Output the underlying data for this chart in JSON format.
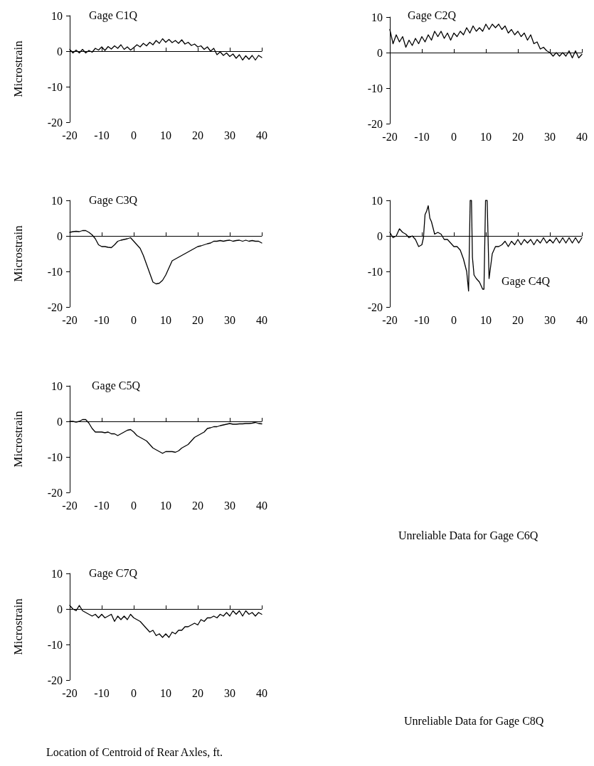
{
  "chart_data": [
    {
      "type": "line",
      "title": "Gage C1Q",
      "ylabel": "Microstrain",
      "color": "#000000",
      "xlim": [
        -20,
        40
      ],
      "ylim": [
        -20,
        10
      ],
      "xticks": [
        -20,
        -10,
        0,
        10,
        20,
        30,
        40
      ],
      "yticks": [
        -20,
        -10,
        0,
        10
      ],
      "x": [
        -20,
        -19,
        -18,
        -17,
        -16,
        -15,
        -14,
        -13,
        -12,
        -11,
        -10,
        -9,
        -8,
        -7,
        -6,
        -5,
        -4,
        -3,
        -2,
        -1,
        0,
        1,
        2,
        3,
        4,
        5,
        6,
        7,
        8,
        9,
        10,
        11,
        12,
        13,
        14,
        15,
        16,
        17,
        18,
        19,
        20,
        21,
        22,
        23,
        24,
        25,
        26,
        27,
        28,
        29,
        30,
        31,
        32,
        33,
        34,
        35,
        36,
        37,
        38,
        39,
        40
      ],
      "values": [
        0.5,
        -0.5,
        0.3,
        -0.5,
        0.5,
        -0.5,
        0.2,
        -0.3,
        0.8,
        0.3,
        1.2,
        0.2,
        1.3,
        0.6,
        1.5,
        0.8,
        1.8,
        0.5,
        1.2,
        0.3,
        1.0,
        1.8,
        1.2,
        2.2,
        1.5,
        2.5,
        1.8,
        3.0,
        2.2,
        3.5,
        2.5,
        3.3,
        2.4,
        3.0,
        2.2,
        3.2,
        2.0,
        2.5,
        1.6,
        2.0,
        1.2,
        1.5,
        0.5,
        1.2,
        0.0,
        0.8,
        -1.0,
        -0.2,
        -1.2,
        -0.5,
        -1.5,
        -0.8,
        -2.0,
        -1.0,
        -2.5,
        -1.3,
        -2.3,
        -1.2,
        -2.5,
        -1.2,
        -1.8
      ]
    },
    {
      "type": "line",
      "title": "Gage C2Q",
      "color": "#000000",
      "xlim": [
        -20,
        40
      ],
      "ylim": [
        -20,
        10
      ],
      "xticks": [
        -20,
        -10,
        0,
        10,
        20,
        30,
        40
      ],
      "yticks": [
        -20,
        -10,
        0,
        10
      ],
      "x": [
        -20,
        -19,
        -18,
        -17,
        -16,
        -15,
        -14,
        -13,
        -12,
        -11,
        -10,
        -9,
        -8,
        -7,
        -6,
        -5,
        -4,
        -3,
        -2,
        -1,
        0,
        1,
        2,
        3,
        4,
        5,
        6,
        7,
        8,
        9,
        10,
        11,
        12,
        13,
        14,
        15,
        16,
        17,
        18,
        19,
        20,
        21,
        22,
        23,
        24,
        25,
        26,
        27,
        28,
        29,
        30,
        31,
        32,
        33,
        34,
        35,
        36,
        37,
        38,
        39,
        40
      ],
      "values": [
        6.5,
        2.5,
        5,
        3,
        4.5,
        1.5,
        3.5,
        2,
        4,
        2.5,
        4.5,
        3,
        5,
        3.5,
        6,
        4.5,
        6,
        4,
        5.5,
        3.5,
        5.5,
        4.5,
        6,
        5,
        7,
        5.5,
        7.5,
        6,
        7,
        6,
        8,
        6.5,
        8,
        7,
        8,
        6.5,
        7.5,
        5.5,
        6.5,
        5,
        6,
        4.5,
        5.5,
        3.5,
        5,
        2.5,
        3,
        1,
        1.5,
        0.5,
        0,
        -1,
        0,
        -1,
        0,
        -1,
        0.5,
        -1.5,
        0.5,
        -1.5,
        -0.5
      ]
    },
    {
      "type": "line",
      "title": "Gage C3Q",
      "ylabel": "Microstrain",
      "color": "#000000",
      "xlim": [
        -20,
        40
      ],
      "ylim": [
        -20,
        10
      ],
      "xticks": [
        -20,
        -10,
        0,
        10,
        20,
        30,
        40
      ],
      "yticks": [
        -20,
        -10,
        0,
        10
      ],
      "x": [
        -20,
        -19,
        -18,
        -17,
        -16,
        -15,
        -14,
        -13,
        -12,
        -11,
        -10,
        -9,
        -8,
        -7,
        -6,
        -5,
        -4,
        -3,
        -2,
        -1,
        0,
        1,
        2,
        3,
        4,
        5,
        6,
        7,
        8,
        9,
        10,
        11,
        12,
        13,
        14,
        15,
        16,
        17,
        18,
        19,
        20,
        21,
        22,
        23,
        24,
        25,
        26,
        27,
        28,
        29,
        30,
        31,
        32,
        33,
        34,
        35,
        36,
        37,
        38,
        39,
        40
      ],
      "values": [
        1,
        1.2,
        1.3,
        1.2,
        1.5,
        1.5,
        1.0,
        0.3,
        -0.8,
        -2.5,
        -3,
        -3,
        -3.2,
        -3.3,
        -2.5,
        -1.5,
        -1.2,
        -1,
        -0.8,
        -0.5,
        -1.5,
        -2.5,
        -3.5,
        -5.5,
        -8,
        -10.5,
        -13,
        -13.5,
        -13.3,
        -12.5,
        -11,
        -9,
        -7,
        -6.5,
        -6,
        -5.5,
        -5,
        -4.5,
        -4,
        -3.5,
        -3,
        -2.8,
        -2.5,
        -2.2,
        -2,
        -1.5,
        -1.5,
        -1.3,
        -1.5,
        -1.3,
        -1.2,
        -1.5,
        -1.3,
        -1.2,
        -1.5,
        -1.2,
        -1.5,
        -1.3,
        -1.5,
        -1.5,
        -2
      ]
    },
    {
      "type": "line",
      "title": "Gage C4Q",
      "color": "#000000",
      "xlim": [
        -20,
        40
      ],
      "ylim": [
        -20,
        10
      ],
      "xticks": [
        -20,
        -10,
        0,
        10,
        20,
        30,
        40
      ],
      "yticks": [
        -20,
        -10,
        0,
        10
      ],
      "x": [
        -20,
        -19,
        -18,
        -17,
        -16,
        -15,
        -14,
        -13,
        -12,
        -11,
        -10,
        -9.5,
        -9,
        -8.5,
        -8,
        -7.5,
        -7,
        -6,
        -5,
        -4,
        -3,
        -2,
        -1,
        0,
        1,
        2,
        3,
        4,
        4.6,
        5.1,
        5.5,
        5.8,
        6.3,
        7,
        8,
        9,
        9.4,
        9.9,
        10.4,
        11,
        12,
        13,
        14,
        15,
        16,
        17,
        18,
        19,
        20,
        21,
        22,
        23,
        24,
        25,
        26,
        27,
        28,
        29,
        30,
        31,
        32,
        33,
        34,
        35,
        36,
        37,
        38,
        39,
        40
      ],
      "values": [
        1,
        -0.5,
        0,
        2,
        1,
        0.5,
        -0.5,
        0,
        -1,
        -3,
        -2.5,
        -0.5,
        6,
        7,
        8.5,
        5,
        4,
        0.5,
        1,
        0.5,
        -1,
        -1,
        -2,
        -3,
        -3,
        -4,
        -6.5,
        -10,
        -15.5,
        10,
        10,
        -6,
        -11,
        -12,
        -13,
        -15,
        -15,
        10,
        10,
        -12,
        -5,
        -3,
        -3,
        -2.5,
        -1.5,
        -3,
        -1.5,
        -2.5,
        -1,
        -2.5,
        -1,
        -2,
        -1,
        -2.5,
        -1,
        -2,
        -0.5,
        -2,
        -1,
        -2,
        -0.5,
        -2,
        -0.5,
        -2,
        -0.5,
        -2,
        -0.5,
        -2,
        -0.5
      ]
    },
    {
      "type": "line",
      "title": "Gage C5Q",
      "ylabel": "Microstrain",
      "color": "#000000",
      "xlim": [
        -20,
        40
      ],
      "ylim": [
        -20,
        10
      ],
      "xticks": [
        -20,
        -10,
        0,
        10,
        20,
        30,
        40
      ],
      "yticks": [
        -20,
        -10,
        0,
        10
      ],
      "x": [
        -20,
        -19,
        -18,
        -17,
        -16,
        -15,
        -14,
        -13,
        -12,
        -11,
        -10,
        -9,
        -8,
        -7,
        -6,
        -5,
        -4,
        -3,
        -2,
        -1,
        0,
        1,
        2,
        3,
        4,
        5,
        6,
        7,
        8,
        9,
        10,
        11,
        12,
        13,
        14,
        15,
        16,
        17,
        18,
        19,
        20,
        21,
        22,
        23,
        24,
        25,
        26,
        27,
        28,
        29,
        30,
        31,
        32,
        33,
        34,
        35,
        36,
        37,
        38,
        39,
        40
      ],
      "values": [
        0,
        0,
        -0.2,
        0,
        0.5,
        0.5,
        -0.5,
        -2,
        -3,
        -3,
        -3,
        -3.2,
        -3,
        -3.5,
        -3.5,
        -4,
        -3.5,
        -3,
        -2.5,
        -2.3,
        -3,
        -4,
        -4.5,
        -5,
        -5.5,
        -6.5,
        -7.5,
        -8,
        -8.5,
        -9,
        -8.5,
        -8.5,
        -8.5,
        -8.7,
        -8.3,
        -7.5,
        -7,
        -6.5,
        -5.5,
        -4.5,
        -4,
        -3.5,
        -3,
        -2,
        -1.8,
        -1.5,
        -1.5,
        -1.2,
        -1,
        -0.8,
        -0.6,
        -0.8,
        -0.8,
        -0.7,
        -0.7,
        -0.6,
        -0.6,
        -0.5,
        -0.3,
        -0.6,
        -0.7
      ]
    },
    {
      "type": "other",
      "title": "Unreliable Data for Gage C6Q"
    },
    {
      "type": "line",
      "title": "Gage C7Q",
      "ylabel": "Microstrain",
      "xlabel": "Location of Centroid of Rear Axles, ft.",
      "color": "#000000",
      "xlim": [
        -20,
        40
      ],
      "ylim": [
        -20,
        10
      ],
      "xticks": [
        -20,
        -10,
        0,
        10,
        20,
        30,
        40
      ],
      "yticks": [
        -20,
        -10,
        0,
        10
      ],
      "x": [
        -20,
        -19,
        -18,
        -17,
        -16,
        -15,
        -14,
        -13,
        -12,
        -11,
        -10,
        -9,
        -8,
        -7,
        -6,
        -5,
        -4,
        -3,
        -2,
        -1,
        0,
        1,
        2,
        3,
        4,
        5,
        6,
        7,
        8,
        9,
        10,
        11,
        12,
        13,
        14,
        15,
        16,
        17,
        18,
        19,
        20,
        21,
        22,
        23,
        24,
        25,
        26,
        27,
        28,
        29,
        30,
        31,
        32,
        33,
        34,
        35,
        36,
        37,
        38,
        39,
        40
      ],
      "values": [
        1,
        0,
        -0.5,
        1,
        -0.5,
        -1,
        -1.5,
        -2,
        -1.5,
        -2.5,
        -1.5,
        -2.5,
        -2,
        -1.5,
        -3.5,
        -2,
        -3,
        -2,
        -3,
        -1.5,
        -2.5,
        -3,
        -3.5,
        -4.5,
        -5.5,
        -6.5,
        -6,
        -7.5,
        -7,
        -8,
        -7,
        -8,
        -6.5,
        -7,
        -6,
        -6,
        -5,
        -5,
        -4.5,
        -4,
        -4.5,
        -3,
        -3.5,
        -2.5,
        -2.5,
        -2,
        -2.5,
        -1.5,
        -2,
        -1,
        -2,
        -0.5,
        -1.5,
        -0.5,
        -2,
        -0.5,
        -1.5,
        -1,
        -2,
        -1,
        -1.5
      ]
    },
    {
      "type": "other",
      "title": "Unreliable Data for Gage C8Q"
    }
  ]
}
